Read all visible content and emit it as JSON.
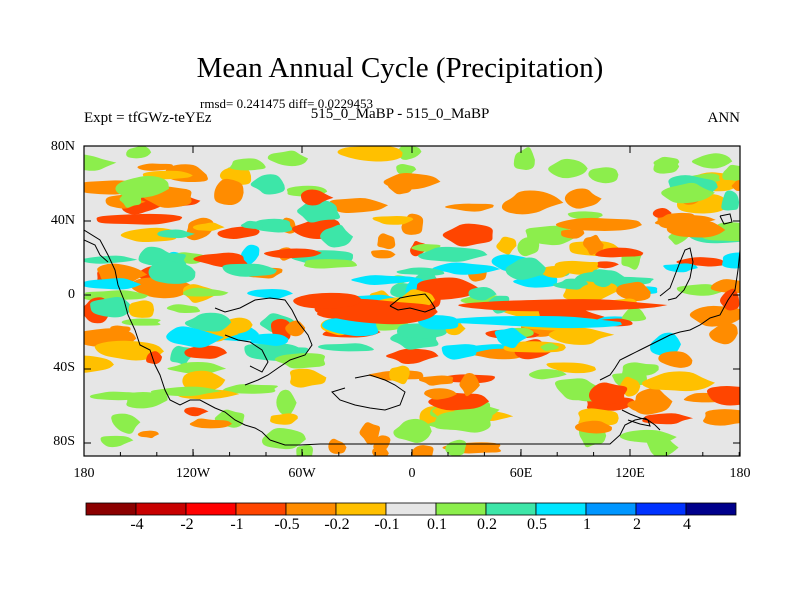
{
  "title": "Mean Annual Cycle (Precipitation)",
  "stats": "rmsd= 0.241475 diff= 0.0229453",
  "expt": "Expt = tfGWz-teYEz",
  "center_label": "515_0_MaBP - 515_0_MaBP",
  "season": "ANN",
  "y_ticks": [
    "80N",
    "40N",
    "0",
    "40S",
    "80S"
  ],
  "x_ticks": [
    "180",
    "120W",
    "60W",
    "0",
    "60E",
    "120E",
    "180"
  ],
  "colorbar": {
    "labels": [
      "-4",
      "-2",
      "-1",
      "-0.5",
      "-0.2",
      "-0.1",
      "0.1",
      "0.2",
      "0.5",
      "1",
      "2",
      "4"
    ],
    "colors": [
      "#8b0000",
      "#c80000",
      "#ff0000",
      "#ff4500",
      "#ff8c00",
      "#ffc000",
      "#e6e6e6",
      "#8cee4c",
      "#3de6a8",
      "#00e6ff",
      "#0096ff",
      "#0032ff",
      "#00008b"
    ]
  },
  "map_colors": {
    "background": "#e6e6e6",
    "dark_orange": "#ff8c00",
    "orange_red": "#ff4500",
    "yellow_orange": "#ffc000",
    "green": "#8cee4c",
    "teal": "#3de6a8",
    "cyan": "#00e6ff",
    "red": "#ff0000"
  }
}
